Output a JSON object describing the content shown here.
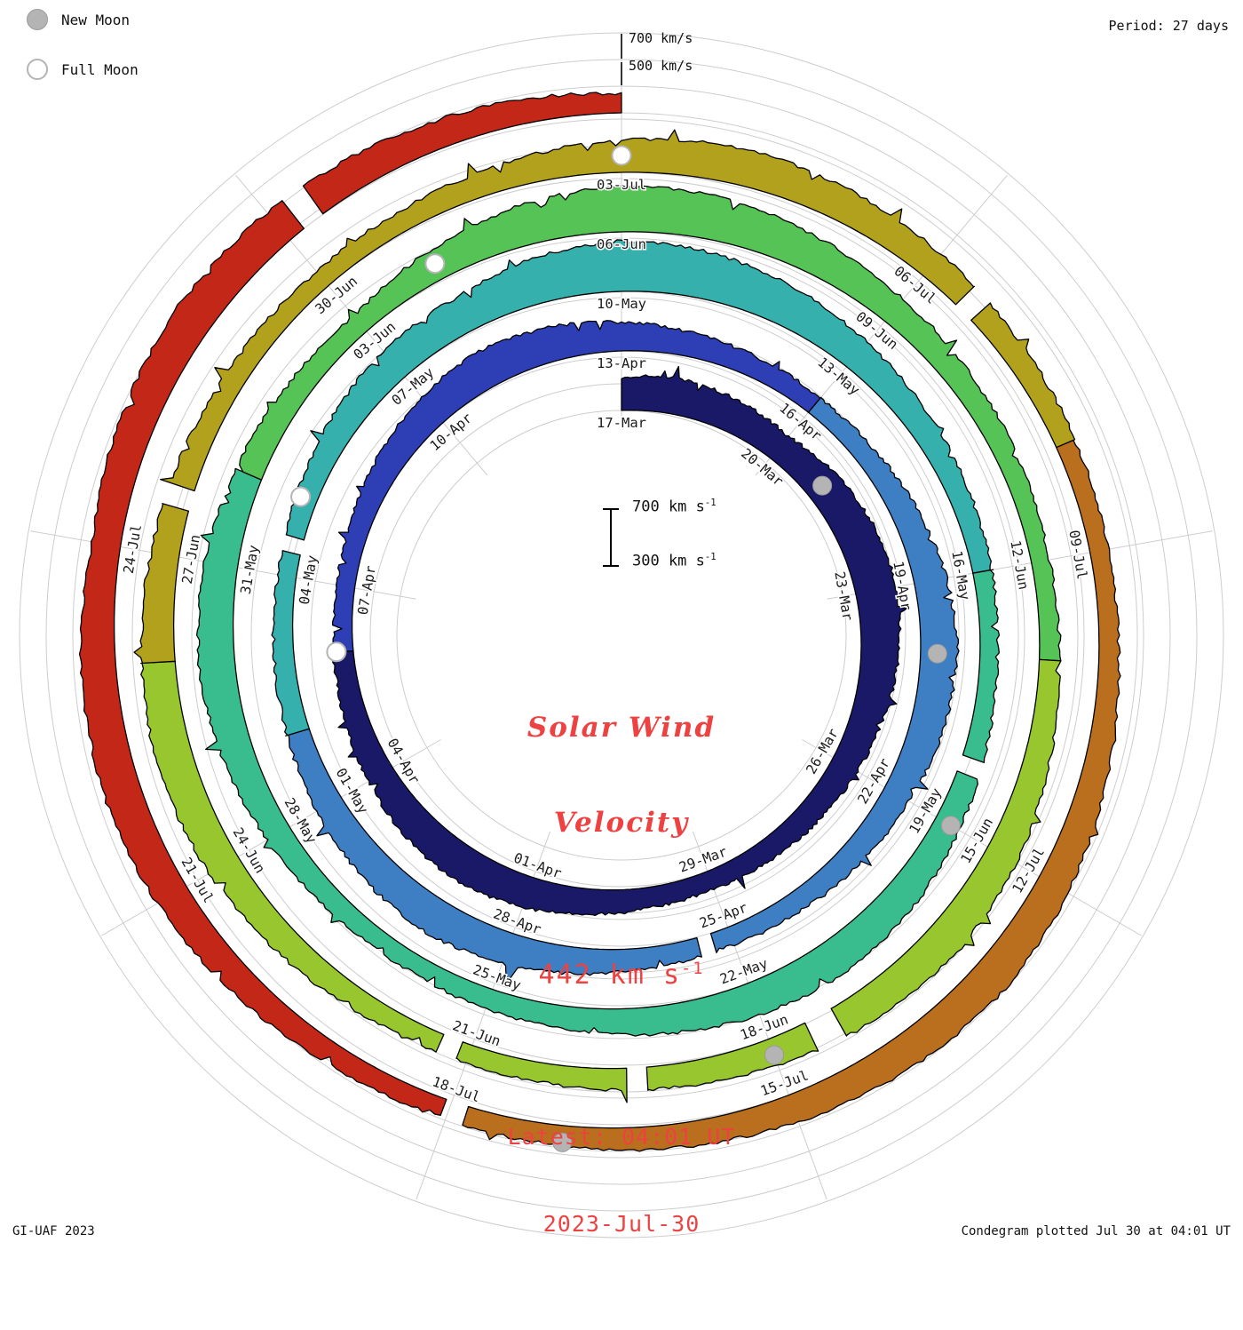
{
  "header": {
    "legend": [
      {
        "label": "New Moon",
        "phase": "new"
      },
      {
        "label": "Full Moon",
        "phase": "full"
      }
    ],
    "period_label": "Period: 27 days"
  },
  "outer_scale": {
    "label_700": "700 km/s",
    "label_500": "500 km/s"
  },
  "center_scale": {
    "top_label": "700 km s",
    "bottom_label": "300 km s",
    "sup": "-1"
  },
  "center": {
    "title_line1": "Solar Wind",
    "title_line2": "Velocity",
    "value": "442 km s",
    "value_sup": "-1",
    "latest_line1": "Latest: 04:01 UT",
    "latest_line2": "2023-Jul-30",
    "accent_color": "#ee4141"
  },
  "footer": {
    "left": "GI-UAF 2023",
    "right": "Condegram plotted Jul 30 at 04:01 UT"
  },
  "chart_data": {
    "type": "area",
    "layout": "polar-spiral-condegram",
    "title": "Solar Wind Velocity",
    "period_days": 27,
    "start_date": "2023-03-17",
    "end_date": "2023-07-30",
    "latest_value_km_s": 442,
    "latest_time": "04:01 UT 2023-Jul-30",
    "radial_range_km_s": [
      300,
      700
    ],
    "grid_levels_km_s": [
      300,
      500,
      700
    ],
    "date_labels": [
      {
        "t": 0,
        "label": "17-Mar"
      },
      {
        "t": 3,
        "label": "20-Mar"
      },
      {
        "t": 6,
        "label": "23-Mar"
      },
      {
        "t": 9,
        "label": "26-Mar"
      },
      {
        "t": 12,
        "label": "29-Mar"
      },
      {
        "t": 15,
        "label": "01-Apr"
      },
      {
        "t": 18,
        "label": "04-Apr"
      },
      {
        "t": 21,
        "label": "07-Apr"
      },
      {
        "t": 24,
        "label": "10-Apr"
      },
      {
        "t": 27,
        "label": "13-Apr"
      },
      {
        "t": 30,
        "label": "16-Apr"
      },
      {
        "t": 33,
        "label": "19-Apr"
      },
      {
        "t": 36,
        "label": "22-Apr"
      },
      {
        "t": 39,
        "label": "25-Apr"
      },
      {
        "t": 42,
        "label": "28-Apr"
      },
      {
        "t": 45,
        "label": "01-May"
      },
      {
        "t": 48,
        "label": "04-May"
      },
      {
        "t": 51,
        "label": "07-May"
      },
      {
        "t": 54,
        "label": "10-May"
      },
      {
        "t": 57,
        "label": "13-May"
      },
      {
        "t": 60,
        "label": "16-May"
      },
      {
        "t": 63,
        "label": "19-May"
      },
      {
        "t": 66,
        "label": "22-May"
      },
      {
        "t": 69,
        "label": "25-May"
      },
      {
        "t": 72,
        "label": "28-May"
      },
      {
        "t": 75,
        "label": "31-May"
      },
      {
        "t": 78,
        "label": "03-Jun"
      },
      {
        "t": 81,
        "label": "06-Jun"
      },
      {
        "t": 84,
        "label": "09-Jun"
      },
      {
        "t": 87,
        "label": "12-Jun"
      },
      {
        "t": 90,
        "label": "15-Jun"
      },
      {
        "t": 93,
        "label": "18-Jun"
      },
      {
        "t": 96,
        "label": "21-Jun"
      },
      {
        "t": 99,
        "label": "24-Jun"
      },
      {
        "t": 102,
        "label": "27-Jun"
      },
      {
        "t": 105,
        "label": "30-Jun"
      },
      {
        "t": 108,
        "label": "03-Jul"
      },
      {
        "t": 111,
        "label": "06-Jul"
      },
      {
        "t": 114,
        "label": "09-Jul"
      },
      {
        "t": 117,
        "label": "12-Jul"
      },
      {
        "t": 120,
        "label": "15-Jul"
      },
      {
        "t": 123,
        "label": "18-Jul"
      },
      {
        "t": 126,
        "label": "21-Jul"
      },
      {
        "t": 129,
        "label": "24-Jul"
      }
    ],
    "segments": [
      {
        "start": 0,
        "end": 20,
        "color": "#191968"
      },
      {
        "start": 20,
        "end": 30,
        "color": "#2e3eb4"
      },
      {
        "start": 30,
        "end": 46,
        "color": "#3e7ec2"
      },
      {
        "start": 46,
        "end": 60,
        "color": "#35b0ad"
      },
      {
        "start": 60,
        "end": 76,
        "color": "#3abd8e"
      },
      {
        "start": 76,
        "end": 88,
        "color": "#55c355"
      },
      {
        "start": 88,
        "end": 101,
        "color": "#97c62e"
      },
      {
        "start": 101,
        "end": 113,
        "color": "#b2a11c"
      },
      {
        "start": 113,
        "end": 123,
        "color": "#b96f1e"
      },
      {
        "start": 123,
        "end": 135,
        "color": "#c22718"
      }
    ],
    "moons": [
      {
        "date": "2023-03-21",
        "t": 4,
        "phase": "new"
      },
      {
        "date": "2023-04-06",
        "t": 20,
        "phase": "full"
      },
      {
        "date": "2023-04-20",
        "t": 34,
        "phase": "new"
      },
      {
        "date": "2023-05-05",
        "t": 49,
        "phase": "full"
      },
      {
        "date": "2023-05-19",
        "t": 63,
        "phase": "new"
      },
      {
        "date": "2023-06-04",
        "t": 79,
        "phase": "full"
      },
      {
        "date": "2023-06-18",
        "t": 93,
        "phase": "new"
      },
      {
        "date": "2023-07-03",
        "t": 108,
        "phase": "full"
      },
      {
        "date": "2023-07-17",
        "t": 122,
        "phase": "new"
      }
    ],
    "gaps": [
      {
        "start": 39.25,
        "end": 39.45
      },
      {
        "start": 48.3,
        "end": 48.5
      },
      {
        "start": 62.2,
        "end": 62.4
      },
      {
        "start": 92.3,
        "end": 92.6
      },
      {
        "start": 94.25,
        "end": 94.45
      },
      {
        "start": 96.1,
        "end": 96.3
      },
      {
        "start": 102.45,
        "end": 102.65
      },
      {
        "start": 111.4,
        "end": 111.6
      },
      {
        "start": 122.85,
        "end": 123.05
      },
      {
        "start": 132.15,
        "end": 132.35
      }
    ],
    "daily_velocity": [
      545,
      572,
      548,
      512,
      560,
      598,
      612,
      585,
      548,
      510,
      478,
      455,
      438,
      452,
      490,
      538,
      570,
      548,
      508,
      472,
      448,
      432,
      455,
      502,
      552,
      582,
      556,
      515,
      480,
      455,
      438,
      452,
      495,
      545,
      578,
      552,
      512,
      478,
      452,
      435,
      450,
      492,
      540,
      572,
      548,
      508,
      472,
      448,
      435,
      458,
      505,
      552,
      572,
      640,
      678,
      652,
      598,
      540,
      495,
      462,
      442,
      430,
      452,
      498,
      548,
      578,
      552,
      512,
      478,
      452,
      436,
      450,
      492,
      542,
      572,
      548,
      508,
      472,
      448,
      530,
      605,
      648,
      622,
      568,
      515,
      478,
      452,
      436,
      452,
      495,
      545,
      575,
      550,
      510,
      475,
      450,
      435,
      452,
      498,
      548,
      578,
      552,
      512,
      478,
      452,
      438,
      452,
      495,
      545,
      575,
      550,
      510,
      475,
      450,
      436,
      452,
      498,
      548,
      578,
      552,
      512,
      478,
      452,
      438,
      455,
      502,
      552,
      582,
      558,
      518,
      560,
      590,
      570,
      530,
      490,
      442
    ]
  }
}
